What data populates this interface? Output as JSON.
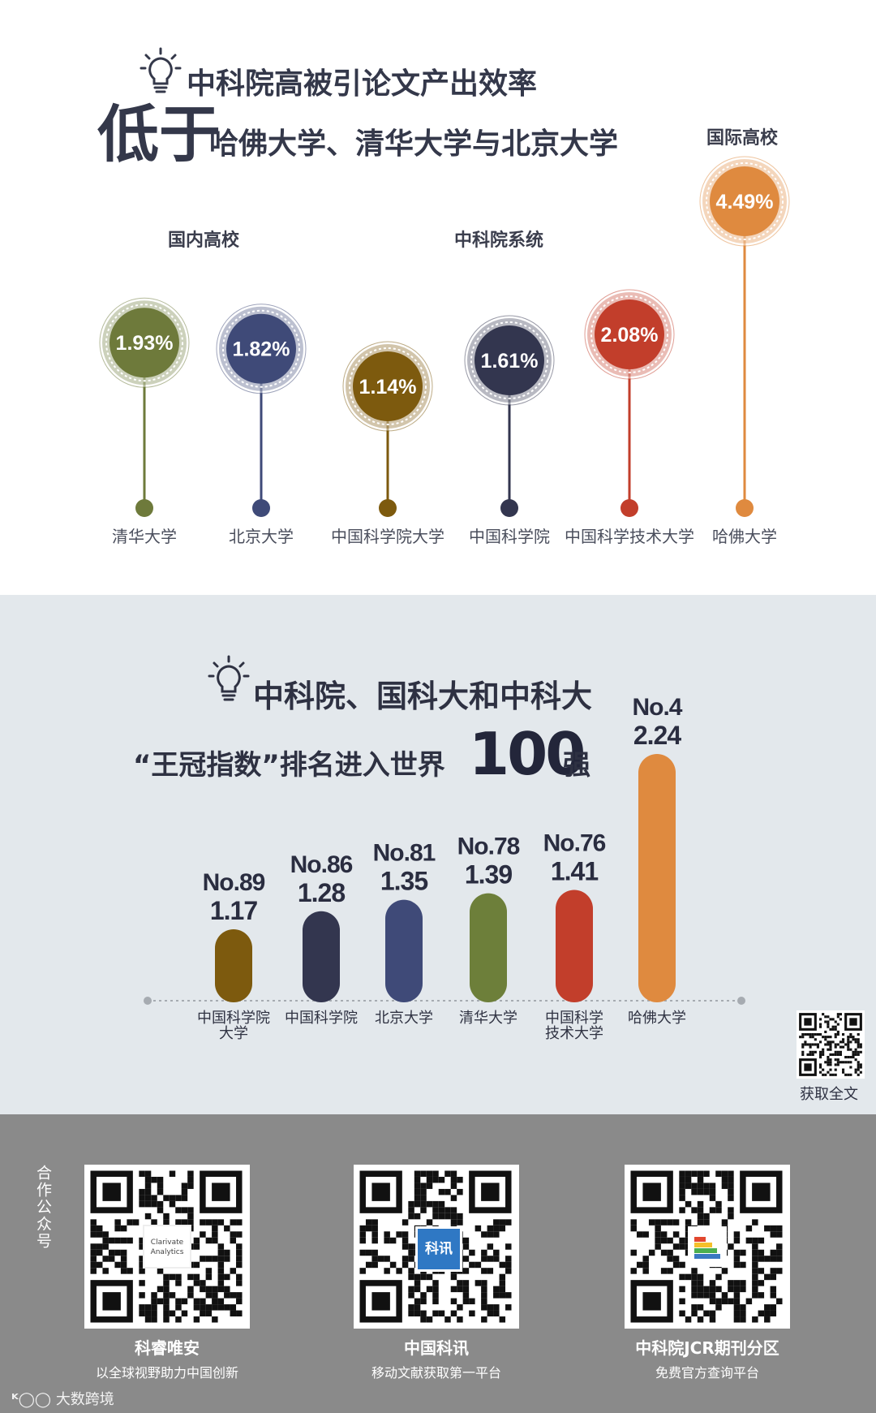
{
  "section1": {
    "title_line1": "中科院高被引论文产出效率",
    "title_low": "低于",
    "title_line2": "哈佛大学、清华大学与北京大学",
    "group_domestic": "国内高校",
    "group_cas": "中科院系统",
    "group_intl": "国际高校"
  },
  "section2": {
    "title_line1": "中科院、国科大和中科大",
    "title_line2_pre": "“王冠指数”排名进入世界",
    "title_line2_num": "100",
    "title_line2_post": "强",
    "qr_caption": "获取全文"
  },
  "footer": {
    "side_label": "合作公众号",
    "qrs": [
      {
        "name": "科睿唯安",
        "sub": "以全球视野助力中国创新",
        "logo_text": "Clarivate Analytics"
      },
      {
        "name": "中国科讯",
        "sub": "移动文献获取第一平台",
        "logo_text": "科讯"
      },
      {
        "name": "中科院JCR期刊分区",
        "sub": "免费官方查询平台",
        "logo_text": ""
      }
    ],
    "watermark": "大数跨境"
  },
  "colors": {
    "qinghua": "#6e7a3b",
    "beida": "#3f4a78",
    "ucas": "#7d5a0e",
    "cas": "#33364f",
    "ustc": "#c23e2b",
    "harvard": "#df8a3f",
    "qinghua_bar": "#6d7f3a"
  },
  "chart_data": [
    {
      "type": "scatter",
      "title": "中科院高被引论文产出效率",
      "categories": [
        "清华大学",
        "北京大学",
        "中国科学院大学",
        "中国科学院",
        "中国科学技术大学",
        "哈佛大学"
      ],
      "values": [
        1.93,
        1.82,
        1.14,
        1.61,
        2.08,
        4.49
      ],
      "value_labels": [
        "1.93%",
        "1.82%",
        "1.14%",
        "1.61%",
        "2.08%",
        "4.49%"
      ],
      "colors": [
        "#6e7a3b",
        "#3f4a78",
        "#7d5a0e",
        "#33364f",
        "#c23e2b",
        "#df8a3f"
      ],
      "groups": [
        "国内高校",
        "国内高校",
        "中科院系统",
        "中科院系统",
        "中科院系统",
        "国际高校"
      ]
    },
    {
      "type": "bar",
      "title": "“王冠指数”排名进入世界100强",
      "categories": [
        "中国科学院大学",
        "中国科学院",
        "北京大学",
        "清华大学",
        "中国科学技术大学",
        "哈佛大学"
      ],
      "labels": [
        "中国科学院\n大学",
        "中国科学院",
        "北京大学",
        "清华大学",
        "中国科学\n技术大学",
        "哈佛大学"
      ],
      "ranks": [
        "No.89",
        "No.86",
        "No.81",
        "No.78",
        "No.76",
        "No.4"
      ],
      "values": [
        1.17,
        1.28,
        1.35,
        1.39,
        1.41,
        2.24
      ],
      "colors": [
        "#7d5a0e",
        "#33364f",
        "#3f4a78",
        "#6d7f3a",
        "#c23e2b",
        "#df8a3f"
      ]
    }
  ]
}
